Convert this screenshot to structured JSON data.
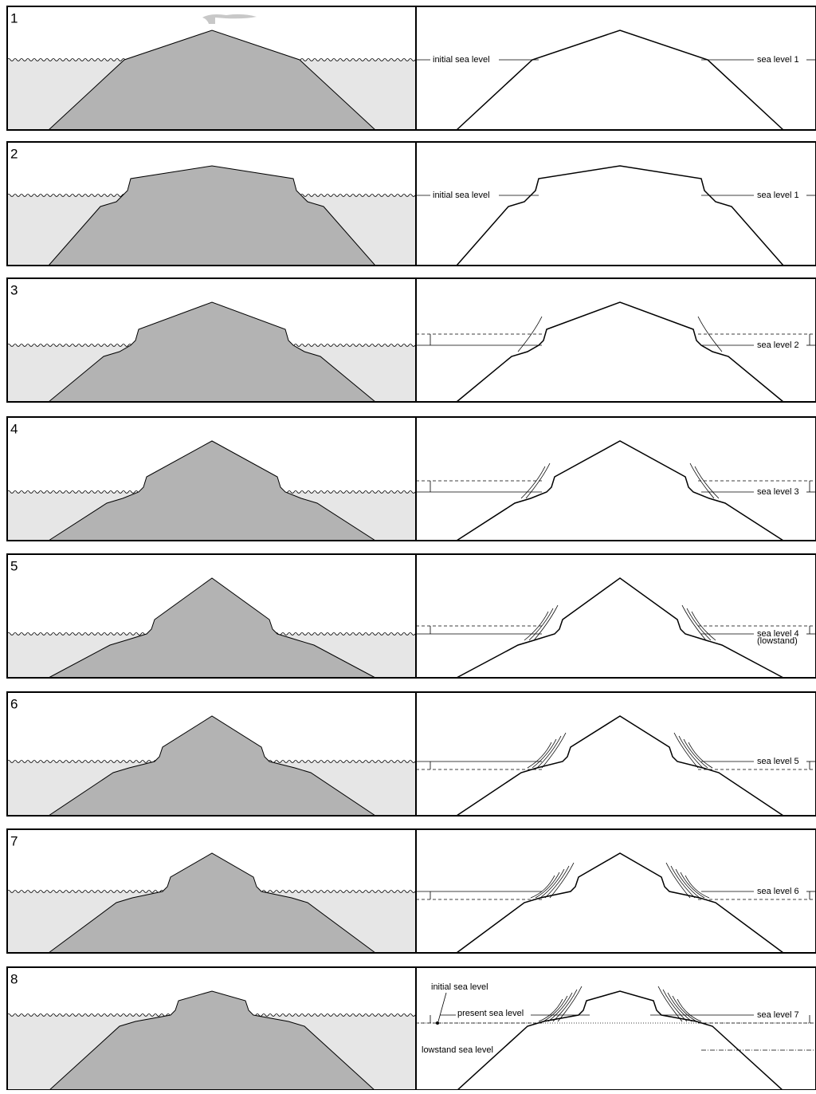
{
  "panels": [
    {
      "number": "1",
      "labels": [
        "initial sea level",
        "sea level 1"
      ]
    },
    {
      "number": "2",
      "labels": [
        "initial sea level",
        "sea level 1"
      ]
    },
    {
      "number": "3",
      "labels": [
        "sea level 2"
      ]
    },
    {
      "number": "4",
      "labels": [
        "sea level 3"
      ]
    },
    {
      "number": "5",
      "labels": [
        "sea level 4",
        "(lowstand)"
      ]
    },
    {
      "number": "6",
      "labels": [
        "sea level 5"
      ]
    },
    {
      "number": "7",
      "labels": [
        "sea level 6"
      ]
    },
    {
      "number": "8",
      "labels": [
        "initial sea level",
        "present sea level",
        "lowstand sea level",
        "sea level 7"
      ]
    }
  ]
}
